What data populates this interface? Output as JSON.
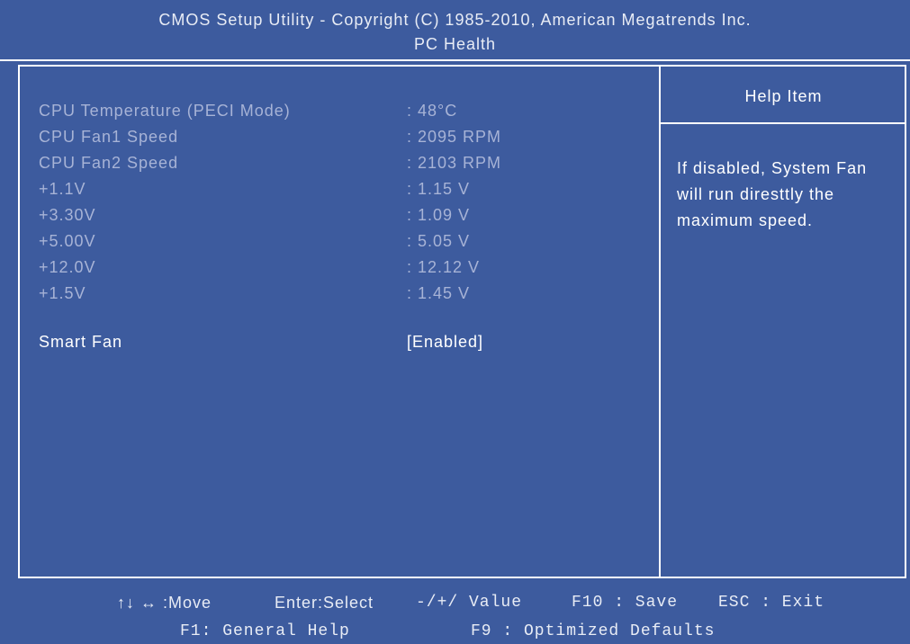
{
  "header": {
    "title": "CMOS Setup Utility  -  Copyright (C) 1985-2010, American Megatrends Inc.",
    "subtitle": "PC Health"
  },
  "items": [
    {
      "label": "CPU Temperature (PECI Mode)",
      "value": ": 48°C"
    },
    {
      "label": "CPU Fan1 Speed",
      "value": ": 2095 RPM"
    },
    {
      "label": "CPU Fan2 Speed",
      "value": ": 2103 RPM"
    },
    {
      "label": "+1.1V",
      "value": ": 1.15 V"
    },
    {
      "label": "+3.30V",
      "value": ": 1.09 V"
    },
    {
      "label": "+5.00V",
      "value": ": 5.05 V"
    },
    {
      "label": "+12.0V",
      "value": ": 12.12 V"
    },
    {
      "label": "+1.5V",
      "value": ": 1.45 V"
    }
  ],
  "setting": {
    "label": "Smart Fan",
    "value": "[Enabled]"
  },
  "help": {
    "title": "Help Item",
    "lines": [
      "If disabled, System Fan",
      "will run diresttly the",
      "maximum speed."
    ]
  },
  "footer": [
    [
      "↑↓ ↔ :Move",
      "Enter:Select",
      "-/+/ Value",
      "F10 : Save",
      "ESC : Exit"
    ],
    [
      "F1: General Help",
      "F9 : Optimized Defaults"
    ]
  ]
}
